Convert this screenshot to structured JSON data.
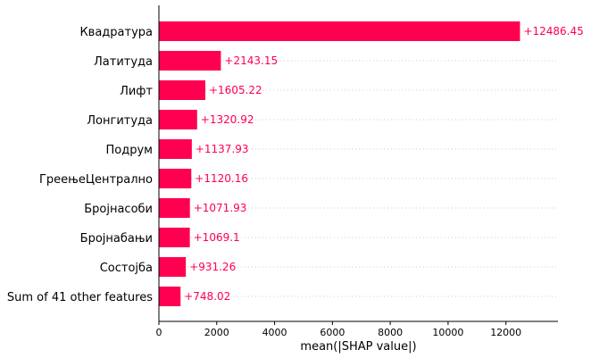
{
  "chart_data": {
    "type": "bar",
    "orientation": "horizontal",
    "categories": [
      "Квадратура",
      "Латитуда",
      "Лифт",
      "Лонгитуда",
      "Подрум",
      "ГреењеЦентрално",
      "Бројнасоби",
      "Бројнабањи",
      "Состојба",
      "Sum of 41 other features"
    ],
    "values": [
      12486.45,
      2143.15,
      1605.22,
      1320.92,
      1137.93,
      1120.16,
      1071.93,
      1069.1,
      931.26,
      748.02
    ],
    "value_labels": [
      "+12486.45",
      "+2143.15",
      "+1605.22",
      "+1320.92",
      "+1137.93",
      "+1120.16",
      "+1071.93",
      "+1069.1",
      "+931.26",
      "+748.02"
    ],
    "xlabel": "mean(|SHAP value|)",
    "ylabel": "",
    "xlim": [
      0,
      13800
    ],
    "xticks": [
      0,
      2000,
      4000,
      6000,
      8000,
      10000,
      12000
    ],
    "xtick_labels": [
      "0",
      "2000",
      "4000",
      "6000",
      "8000",
      "10000",
      "12000"
    ],
    "grid": "dotted horizontal guide lines per row",
    "colors": {
      "bar": "#ff0051",
      "value_label": "#ff0051",
      "axis": "#000000",
      "guide": "#cccccc"
    }
  }
}
